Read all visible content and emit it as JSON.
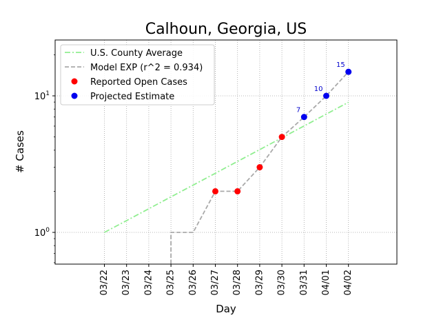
{
  "chart_data": {
    "type": "line",
    "title": "Calhoun, Georgia, US",
    "xlabel": "Day",
    "ylabel": "# Cases",
    "yscale": "log",
    "grid": true,
    "legend_position": "top-left",
    "categories": [
      "03/22",
      "03/23",
      "03/24",
      "03/25",
      "03/26",
      "03/27",
      "03/28",
      "03/29",
      "03/30",
      "03/31",
      "04/01",
      "04/02"
    ],
    "y_ticks": [
      {
        "value": 1,
        "base": "10",
        "exp": "0"
      },
      {
        "value": 10,
        "base": "10",
        "exp": "1"
      }
    ],
    "series": [
      {
        "name": "U.S. County Average",
        "kind": "line",
        "style": "dashdot",
        "color": "#90ee90",
        "x": [
          "03/22",
          "03/23",
          "03/24",
          "03/25",
          "03/26",
          "03/27",
          "03/28",
          "03/29",
          "03/30",
          "03/31",
          "04/01",
          "04/02"
        ],
        "values": [
          1.0,
          1.22,
          1.49,
          1.82,
          2.22,
          2.71,
          3.31,
          4.04,
          4.93,
          6.02,
          7.35,
          8.97
        ]
      },
      {
        "name": "Model EXP (r^2 = 0.934)",
        "kind": "line",
        "style": "dashed",
        "color": "#a9a9a9",
        "x": [
          "03/25",
          "03/25",
          "03/26",
          "03/27",
          "03/28",
          "03/29",
          "03/30",
          "03/31",
          "04/01",
          "04/02"
        ],
        "values": [
          0.5,
          1,
          1,
          2,
          2,
          3,
          5,
          7,
          10,
          15
        ]
      },
      {
        "name": "Reported Open Cases",
        "kind": "scatter",
        "color": "#ff0000",
        "x": [
          "03/27",
          "03/28",
          "03/29",
          "03/30"
        ],
        "values": [
          2,
          2,
          3,
          5
        ]
      },
      {
        "name": "Projected Estimate",
        "kind": "scatter",
        "color": "#0000ee",
        "x": [
          "03/31",
          "04/01",
          "04/02"
        ],
        "values": [
          7,
          10,
          15
        ],
        "labels": [
          "7",
          "10",
          "15"
        ]
      }
    ]
  }
}
